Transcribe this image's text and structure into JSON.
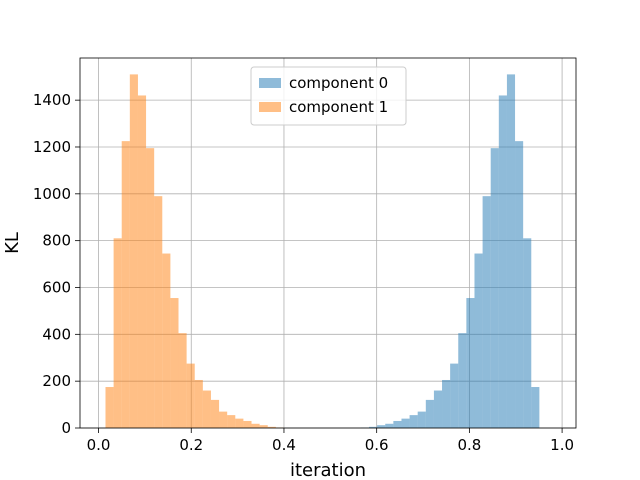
{
  "chart_data": {
    "type": "bar",
    "subtype": "histogram",
    "xlabel": "iteration",
    "ylabel": "KL",
    "xlim": [
      -0.04,
      1.03
    ],
    "ylim": [
      0,
      1580
    ],
    "grid": true,
    "legend_position": "upper-center",
    "x_ticks": [
      {
        "value": 0.0,
        "label": "0.0"
      },
      {
        "value": 0.2,
        "label": "0.2"
      },
      {
        "value": 0.4,
        "label": "0.4"
      },
      {
        "value": 0.6,
        "label": "0.6"
      },
      {
        "value": 0.8,
        "label": "0.8"
      },
      {
        "value": 1.0,
        "label": "1.0"
      }
    ],
    "y_ticks": [
      {
        "value": 0,
        "label": "0"
      },
      {
        "value": 200,
        "label": "200"
      },
      {
        "value": 400,
        "label": "400"
      },
      {
        "value": 600,
        "label": "600"
      },
      {
        "value": 800,
        "label": "800"
      },
      {
        "value": 1000,
        "label": "1000"
      },
      {
        "value": 1200,
        "label": "1200"
      },
      {
        "value": 1400,
        "label": "1400"
      }
    ],
    "series": [
      {
        "name": "component 0",
        "color": "#1f77b4",
        "opacity": 0.5,
        "bin_start": 0.566,
        "bin_width": 0.0175,
        "counts": [
          2,
          5,
          12,
          18,
          30,
          40,
          55,
          70,
          120,
          160,
          205,
          275,
          405,
          555,
          745,
          990,
          1195,
          1420,
          1510,
          1225,
          810,
          175
        ]
      },
      {
        "name": "component 1",
        "color": "#ff7f0e",
        "opacity": 0.5,
        "bin_start": 0.015,
        "bin_width": 0.0175,
        "counts": [
          175,
          810,
          1225,
          1510,
          1420,
          1195,
          990,
          745,
          555,
          405,
          275,
          205,
          160,
          120,
          70,
          55,
          40,
          30,
          18,
          12,
          5,
          2
        ]
      }
    ]
  }
}
